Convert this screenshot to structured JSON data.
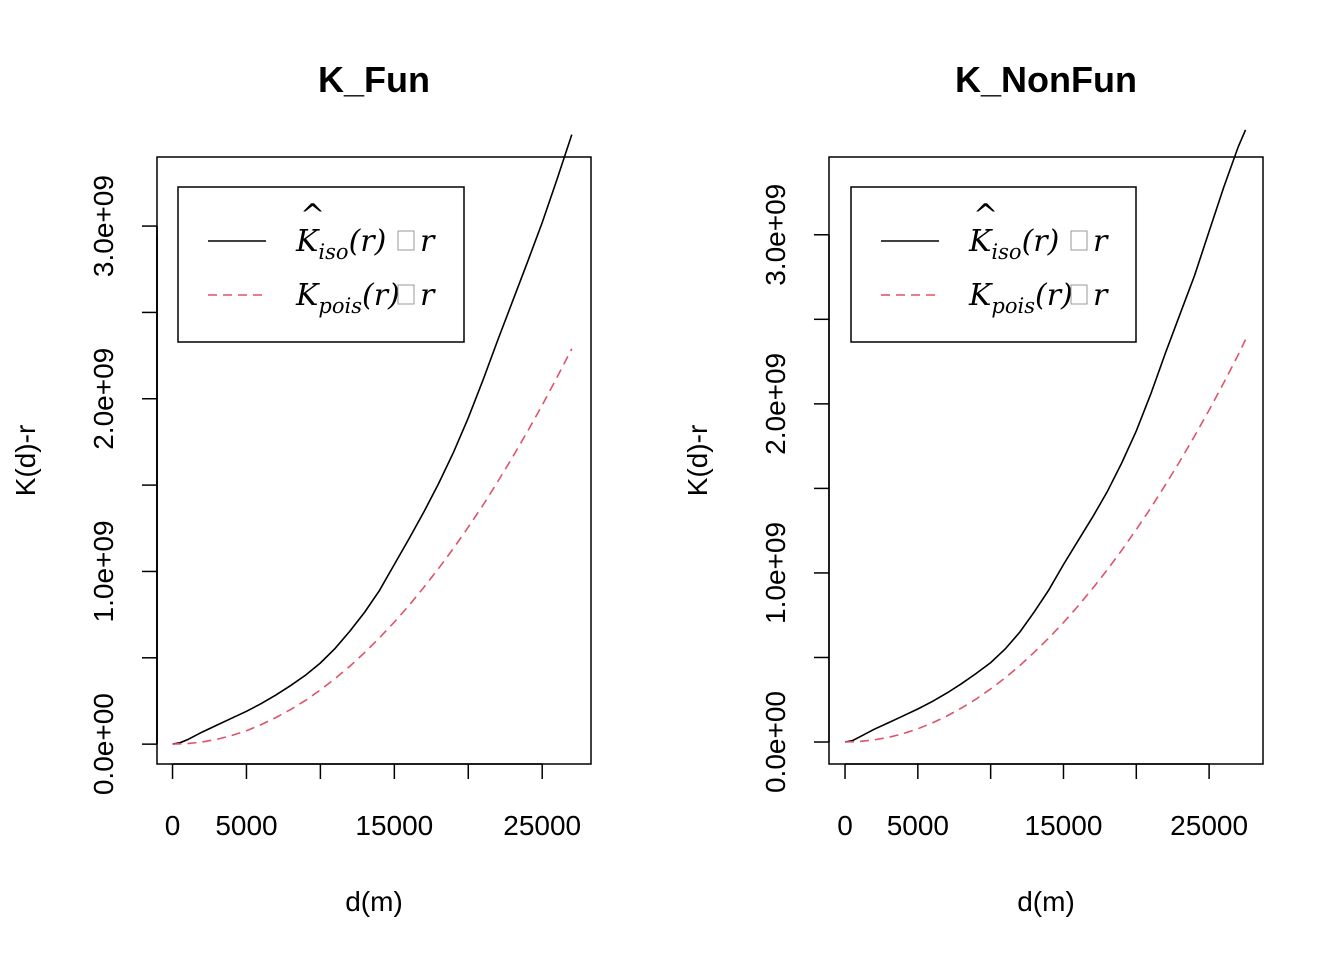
{
  "colors": {
    "observed": "#000000",
    "theoretical": "#DF536B"
  },
  "chart_data": [
    {
      "type": "line",
      "title": "K_Fun",
      "xlabel": "d(m)",
      "ylabel": "K(d)-r",
      "xlim": [
        -1050,
        28300
      ],
      "ylim": [
        -115000000,
        3400000000
      ],
      "x_ticks": [
        0,
        5000,
        10000,
        15000,
        20000,
        25000
      ],
      "x_tick_labels": [
        "0",
        "5000",
        "",
        "15000",
        "",
        "25000"
      ],
      "y_ticks": [
        0,
        500000000,
        1000000000,
        1500000000,
        2000000000,
        2500000000,
        3000000000
      ],
      "y_tick_labels": [
        "0.0e+00",
        "",
        "1.0e+09",
        "",
        "2.0e+09",
        "",
        "3.0e+09"
      ],
      "legend": {
        "position": "top-left",
        "entries": [
          {
            "main": "K",
            "hat": "^",
            "sub": "iso",
            "rest": "(r)",
            "tail": "r",
            "style": "solid"
          },
          {
            "main": "K",
            "hat": "",
            "sub": "pois",
            "rest": "(r)",
            "tail": "r",
            "style": "dashed"
          }
        ]
      },
      "series": [
        {
          "style": "solid",
          "x": [
            0,
            500,
            1000,
            2000,
            3000,
            4000,
            5000,
            6000,
            7000,
            8000,
            9000,
            10000,
            11000,
            12000,
            13000,
            14000,
            15000,
            16000,
            17000,
            18000,
            19000,
            20000,
            21000,
            22000,
            23000,
            24000,
            25000,
            26000,
            27000
          ],
          "y": [
            0,
            8000000,
            25000000,
            70000000,
            110000000,
            150000000,
            190000000,
            235000000,
            285000000,
            340000000,
            400000000,
            470000000,
            555000000,
            655000000,
            765000000,
            890000000,
            1040000000,
            1190000000,
            1345000000,
            1510000000,
            1690000000,
            1890000000,
            2110000000,
            2340000000,
            2565000000,
            2790000000,
            3020000000,
            3270000000,
            3530000000
          ]
        },
        {
          "style": "dashed",
          "x": [
            0,
            1000,
            2000,
            3000,
            4000,
            5000,
            6000,
            7000,
            8000,
            9000,
            10000,
            11000,
            12000,
            13000,
            14000,
            15000,
            16000,
            17000,
            18000,
            19000,
            20000,
            21000,
            22000,
            23000,
            24000,
            25000,
            26000,
            27000
          ],
          "y": [
            0,
            3000000,
            12500000,
            28000000,
            50000000,
            78000000,
            113000000,
            154000000,
            201000000,
            254000000,
            314000000,
            380000000,
            452000000,
            531000000,
            616000000,
            707000000,
            804000000,
            908000000,
            1018000000,
            1134000000,
            1257000000,
            1385000000,
            1521000000,
            1662000000,
            1810000000,
            1963000000,
            2124000000,
            2290000000
          ]
        }
      ]
    },
    {
      "type": "line",
      "title": "K_NonFun",
      "xlabel": "d(m)",
      "ylabel": "K(d)-r",
      "xlim": [
        -1100,
        28700
      ],
      "ylim": [
        -130000000,
        3460000000
      ],
      "x_ticks": [
        0,
        5000,
        10000,
        15000,
        20000,
        25000
      ],
      "x_tick_labels": [
        "0",
        "5000",
        "",
        "15000",
        "",
        "25000"
      ],
      "y_ticks": [
        0,
        500000000,
        1000000000,
        1500000000,
        2000000000,
        2500000000,
        3000000000
      ],
      "y_tick_labels": [
        "0.0e+00",
        "",
        "1.0e+09",
        "",
        "2.0e+09",
        "",
        "3.0e+09"
      ],
      "legend": {
        "position": "top-left",
        "entries": [
          {
            "main": "K",
            "hat": "^",
            "sub": "iso",
            "rest": "(r)",
            "tail": "r",
            "style": "solid"
          },
          {
            "main": "K",
            "hat": "",
            "sub": "pois",
            "rest": "(r)",
            "tail": "r",
            "style": "dashed"
          }
        ]
      },
      "series": [
        {
          "style": "solid",
          "x": [
            0,
            500,
            1000,
            2000,
            3000,
            4000,
            5000,
            6000,
            7000,
            8000,
            9000,
            10000,
            11000,
            12000,
            13000,
            14000,
            15000,
            16000,
            17000,
            18000,
            19000,
            20000,
            21000,
            22000,
            23000,
            24000,
            25000,
            26000,
            27000,
            27500
          ],
          "y": [
            0,
            8000000,
            30000000,
            75000000,
            115000000,
            155000000,
            195000000,
            240000000,
            290000000,
            345000000,
            405000000,
            470000000,
            550000000,
            650000000,
            770000000,
            900000000,
            1050000000,
            1190000000,
            1330000000,
            1480000000,
            1650000000,
            1840000000,
            2060000000,
            2300000000,
            2530000000,
            2760000000,
            3020000000,
            3280000000,
            3520000000,
            3620000000
          ]
        },
        {
          "style": "dashed",
          "x": [
            0,
            1000,
            2000,
            3000,
            4000,
            5000,
            6000,
            7000,
            8000,
            9000,
            10000,
            11000,
            12000,
            13000,
            14000,
            15000,
            16000,
            17000,
            18000,
            19000,
            20000,
            21000,
            22000,
            23000,
            24000,
            25000,
            26000,
            27000,
            27500
          ],
          "y": [
            0,
            3000000,
            12500000,
            28000000,
            50000000,
            78000000,
            113000000,
            154000000,
            201000000,
            254000000,
            314000000,
            380000000,
            452000000,
            531000000,
            616000000,
            707000000,
            804000000,
            908000000,
            1018000000,
            1134000000,
            1257000000,
            1385000000,
            1521000000,
            1662000000,
            1810000000,
            1963000000,
            2124000000,
            2290000000,
            2380000000
          ]
        }
      ]
    }
  ]
}
